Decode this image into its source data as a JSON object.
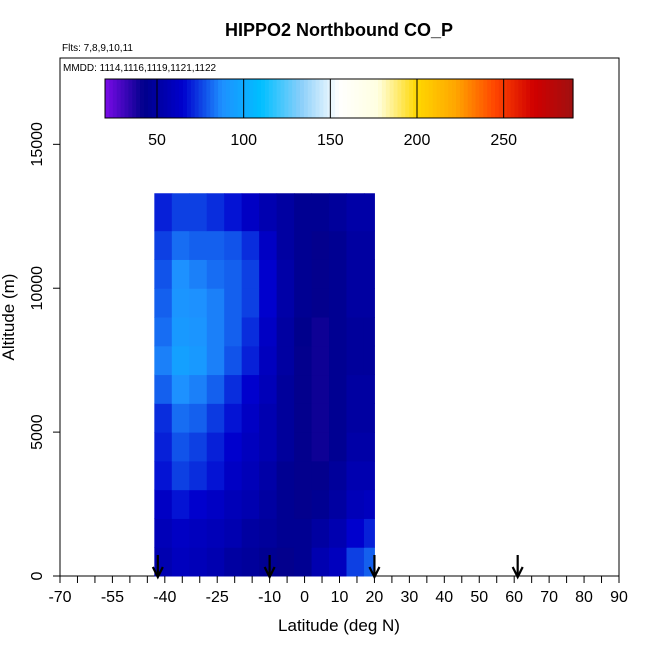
{
  "chart_data": {
    "type": "heatmap",
    "title": "HIPPO2 Northbound CO_P",
    "flights_note": "Flts: 7,8,9,10,11",
    "dates_note": "MMDD: 1114,1116,1119,1121,1122",
    "xlabel": "Latitude (deg N)",
    "ylabel": "Altitude (m)",
    "xlim": [
      -70,
      90
    ],
    "ylim": [
      0,
      18000
    ],
    "x_ticks": [
      "-70",
      "-55",
      "-40",
      "-25",
      "-10",
      "0",
      "10",
      "20",
      "30",
      "40",
      "50",
      "60",
      "70",
      "80",
      "90"
    ],
    "x_tick_values": [
      -70,
      -55,
      -40,
      -25,
      -10,
      0,
      10,
      20,
      30,
      40,
      50,
      60,
      70,
      80,
      90
    ],
    "y_ticks": [
      "0",
      "5000",
      "10000",
      "15000"
    ],
    "y_tick_values": [
      0,
      5000,
      10000,
      15000
    ],
    "colorbar": {
      "range": [
        20,
        290
      ],
      "tick_labels": [
        "50",
        "100",
        "150",
        "200",
        "250"
      ],
      "tick_values": [
        50,
        100,
        150,
        200,
        250
      ],
      "colors": [
        "#7a0be8",
        "#00008b",
        "#0000cd",
        "#1e90ff",
        "#00bfff",
        "#87cefa",
        "#ffffff",
        "#ffffe0",
        "#ffd700",
        "#ffa500",
        "#ff4500",
        "#d00000",
        "#a01010"
      ]
    },
    "flight_markers": [
      -42,
      -10,
      20,
      61
    ],
    "coverage": {
      "lat_min": -43,
      "lat_max": 20,
      "alt_max_south": 12500,
      "alt_max_north": 13300,
      "notes": "gridded CO_P values mostly 35-110 ppb; lowest (~40-60) near equator, higher (~80-100) at southern mid-latitudes 5-11 km"
    },
    "grid": {
      "lat_edges": [
        -43,
        -38,
        -33,
        -28,
        -23,
        -18,
        -13,
        -8,
        -3,
        2,
        7,
        12,
        17,
        20
      ],
      "alt_edges": [
        0,
        1000,
        2000,
        3000,
        4000,
        5000,
        6000,
        7000,
        8000,
        9000,
        10000,
        11000,
        12000,
        13300
      ],
      "values": [
        [
          55,
          60,
          58,
          55,
          50,
          48,
          45,
          42,
          45,
          55,
          60,
          75,
          80
        ],
        [
          58,
          62,
          60,
          58,
          55,
          50,
          48,
          45,
          45,
          50,
          55,
          65,
          70
        ],
        [
          62,
          68,
          65,
          62,
          58,
          55,
          50,
          45,
          42,
          45,
          50,
          58,
          60
        ],
        [
          68,
          75,
          72,
          68,
          62,
          58,
          52,
          45,
          42,
          42,
          48,
          55,
          55
        ],
        [
          70,
          78,
          75,
          70,
          65,
          60,
          55,
          48,
          42,
          40,
          45,
          52,
          52
        ],
        [
          72,
          82,
          80,
          74,
          68,
          62,
          55,
          48,
          42,
          40,
          45,
          50,
          50
        ],
        [
          80,
          88,
          85,
          80,
          72,
          65,
          58,
          48,
          42,
          40,
          45,
          50,
          50
        ],
        [
          85,
          95,
          92,
          85,
          78,
          70,
          60,
          50,
          42,
          40,
          45,
          48,
          48
        ],
        [
          82,
          92,
          90,
          85,
          80,
          72,
          62,
          50,
          43,
          40,
          45,
          48,
          48
        ],
        [
          80,
          90,
          88,
          85,
          80,
          75,
          65,
          52,
          45,
          42,
          45,
          50,
          50
        ],
        [
          78,
          88,
          85,
          82,
          80,
          75,
          65,
          52,
          45,
          42,
          45,
          50,
          50
        ],
        [
          75,
          82,
          80,
          80,
          78,
          72,
          62,
          50,
          45,
          42,
          45,
          50,
          50
        ],
        [
          70,
          75,
          75,
          72,
          68,
          62,
          55,
          50,
          45,
          45,
          48,
          52,
          52
        ]
      ]
    }
  }
}
